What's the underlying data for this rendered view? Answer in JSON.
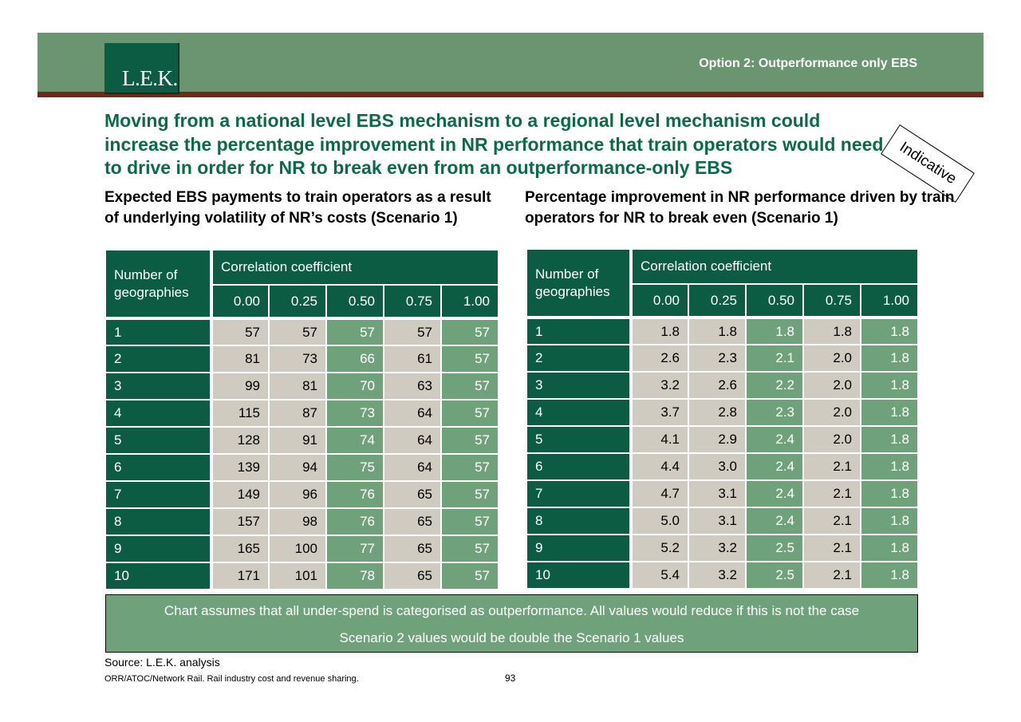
{
  "header": {
    "logo_text": "L.E.K.",
    "option_label": "Option 2: Outperformance only EBS",
    "brand_green": "#0b5c43",
    "band_color": "#6a9570",
    "rule_color": "#6b2a1a"
  },
  "headline": "Moving from a national level EBS mechanism to a regional level mechanism could increase the percentage improvement in NR performance that train operators would need to drive in order for NR to break even from an outperformance-only EBS",
  "stamp": "Indicative",
  "left_table": {
    "title": "Expected EBS payments to train operators as a result of underlying volatility of NR’s costs (Scenario 1)",
    "row_header": "Number of geographies",
    "group_header": "Correlation coefficient",
    "columns": [
      "0.00",
      "0.25",
      "0.50",
      "0.75",
      "1.00"
    ],
    "rows": [
      {
        "geo": "1",
        "vals": [
          "57",
          "57",
          "57",
          "57",
          "57"
        ]
      },
      {
        "geo": "2",
        "vals": [
          "81",
          "73",
          "66",
          "61",
          "57"
        ]
      },
      {
        "geo": "3",
        "vals": [
          "99",
          "81",
          "70",
          "63",
          "57"
        ]
      },
      {
        "geo": "4",
        "vals": [
          "115",
          "87",
          "73",
          "64",
          "57"
        ]
      },
      {
        "geo": "5",
        "vals": [
          "128",
          "91",
          "74",
          "64",
          "57"
        ]
      },
      {
        "geo": "6",
        "vals": [
          "139",
          "94",
          "75",
          "64",
          "57"
        ]
      },
      {
        "geo": "7",
        "vals": [
          "149",
          "96",
          "76",
          "65",
          "57"
        ]
      },
      {
        "geo": "8",
        "vals": [
          "157",
          "98",
          "76",
          "65",
          "57"
        ]
      },
      {
        "geo": "9",
        "vals": [
          "165",
          "100",
          "77",
          "65",
          "57"
        ]
      },
      {
        "geo": "10",
        "vals": [
          "171",
          "101",
          "78",
          "65",
          "57"
        ]
      }
    ]
  },
  "right_table": {
    "title": "Percentage improvement in NR performance driven by train operators for NR to break even (Scenario 1)",
    "row_header": "Number of geographies",
    "group_header": "Correlation coefficient",
    "columns": [
      "0.00",
      "0.25",
      "0.50",
      "0.75",
      "1.00"
    ],
    "rows": [
      {
        "geo": "1",
        "vals": [
          "1.8",
          "1.8",
          "1.8",
          "1.8",
          "1.8"
        ]
      },
      {
        "geo": "2",
        "vals": [
          "2.6",
          "2.3",
          "2.1",
          "2.0",
          "1.8"
        ]
      },
      {
        "geo": "3",
        "vals": [
          "3.2",
          "2.6",
          "2.2",
          "2.0",
          "1.8"
        ]
      },
      {
        "geo": "4",
        "vals": [
          "3.7",
          "2.8",
          "2.3",
          "2.0",
          "1.8"
        ]
      },
      {
        "geo": "5",
        "vals": [
          "4.1",
          "2.9",
          "2.4",
          "2.0",
          "1.8"
        ]
      },
      {
        "geo": "6",
        "vals": [
          "4.4",
          "3.0",
          "2.4",
          "2.1",
          "1.8"
        ]
      },
      {
        "geo": "7",
        "vals": [
          "4.7",
          "3.1",
          "2.4",
          "2.1",
          "1.8"
        ]
      },
      {
        "geo": "8",
        "vals": [
          "5.0",
          "3.1",
          "2.4",
          "2.1",
          "1.8"
        ]
      },
      {
        "geo": "9",
        "vals": [
          "5.2",
          "3.2",
          "2.5",
          "2.1",
          "1.8"
        ]
      },
      {
        "geo": "10",
        "vals": [
          "5.4",
          "3.2",
          "2.5",
          "2.1",
          "1.8"
        ]
      }
    ]
  },
  "notes": [
    "Chart assumes that all under-spend is categorised as outperformance. All values would reduce if this is not the case",
    "Scenario 2 values would be double the Scenario 1 values"
  ],
  "source": "Source: L.E.K. analysis",
  "footer": "ORR/ATOC/Network Rail.  Rail industry cost and revenue sharing.",
  "page_number": "93"
}
